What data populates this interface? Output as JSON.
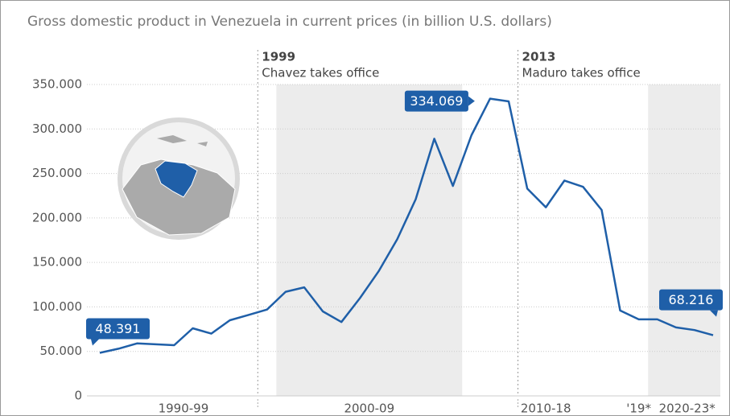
{
  "chart_data": {
    "type": "line",
    "title": "Gross domestic product in Venezuela in current prices (in billion U.S. dollars)",
    "periods": [
      "1990-99",
      "2000-09",
      "2010-18",
      "'19*",
      "2020-23*"
    ],
    "annotations": [
      {
        "year": "1999",
        "text": "Chavez takes office"
      },
      {
        "year": "2013",
        "text": "Maduro takes office"
      }
    ],
    "series": [
      {
        "name": "GDP",
        "color": "#1f5fa8",
        "values": [
          48.391,
          53,
          59,
          58,
          57,
          76,
          70,
          85,
          91,
          97,
          117,
          122,
          95,
          83,
          110,
          140,
          176,
          221,
          289,
          236,
          293,
          334.069,
          331,
          233,
          212,
          242,
          235,
          209,
          96,
          86,
          86,
          77,
          74,
          68.216
        ]
      }
    ],
    "ylim": [
      0,
      350
    ],
    "yticks": [
      0,
      {
        "value": 50,
        "label": "50.000"
      },
      {
        "value": 100,
        "label": "100.000"
      },
      {
        "value": 150,
        "label": "150.000"
      },
      {
        "value": 200,
        "label": "200.000"
      },
      {
        "value": 250,
        "label": "250.000"
      },
      {
        "value": 300,
        "label": "300.000"
      },
      {
        "value": 350,
        "label": "350.000"
      }
    ],
    "grid": true
  }
}
